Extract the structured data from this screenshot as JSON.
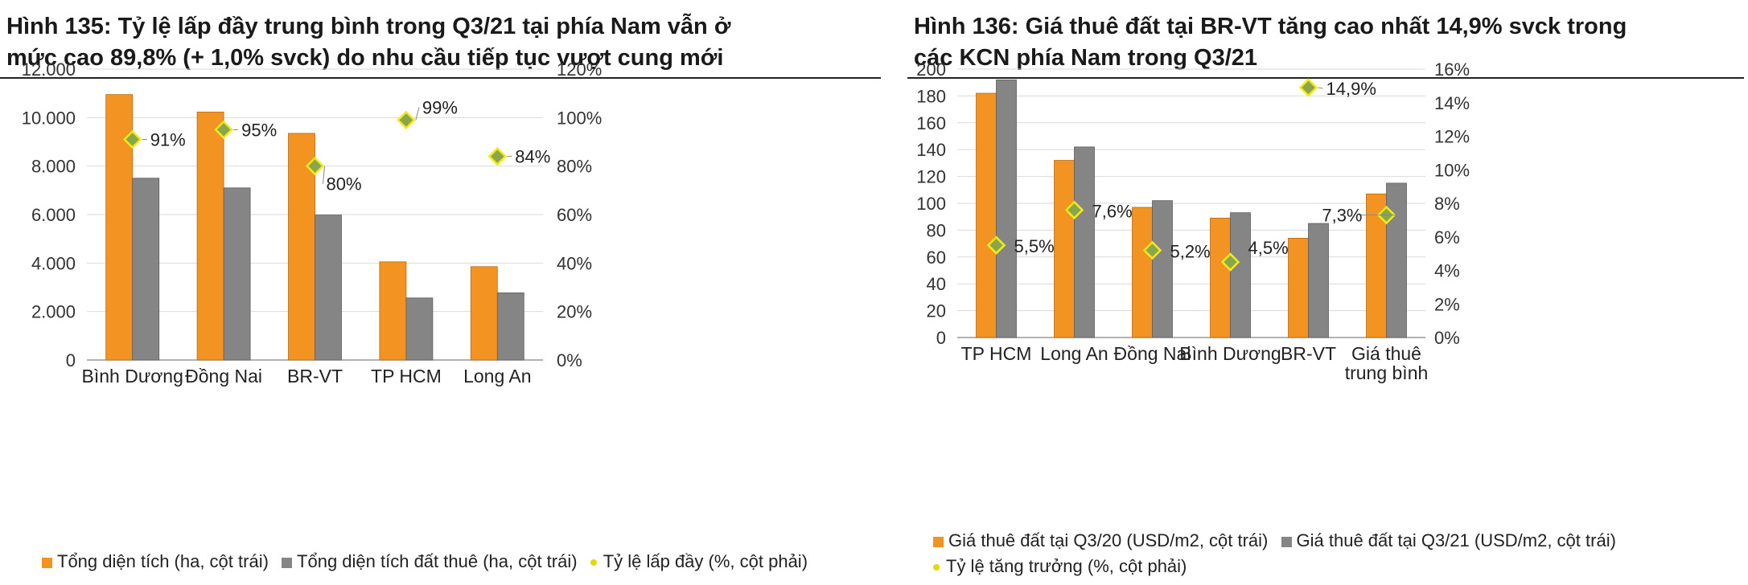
{
  "colors": {
    "orange": "#f39322",
    "gray": "#858585",
    "marker_fill": "#8aa64a",
    "marker_edge": "#f2ea1a"
  },
  "chart_data": [
    {
      "type": "bar",
      "title": "Hình 135: Tỷ lệ lấp đầy trung bình trong Q3/21 tại phía Nam vẫn ở\nmức cao 89,8% (+ 1,0% svck) do nhu cầu tiếp tục vượt cung mới",
      "categories": [
        "Bình Dương",
        "Đồng Nai",
        "BR-VT",
        "TP HCM",
        "Long An"
      ],
      "series": [
        {
          "name": "Tổng diện tích (ha, cột trái)",
          "values": [
            10950,
            10230,
            9350,
            4050,
            3850
          ],
          "color": "#f39322",
          "axis": "left"
        },
        {
          "name": "Tổng diện tích đất thuê (ha, cột trái)",
          "values": [
            7500,
            7100,
            5980,
            2560,
            2770
          ],
          "color": "#858585",
          "axis": "left"
        },
        {
          "name": "Tỷ lệ lấp đầy (%, cột phải)",
          "values": [
            91,
            95,
            80,
            99,
            84
          ],
          "labels": [
            "91%",
            "95%",
            "80%",
            "99%",
            "84%"
          ],
          "type": "marker",
          "axis": "right"
        }
      ],
      "ylim": [
        0,
        12000
      ],
      "yticks": [
        "0",
        "2.000",
        "4.000",
        "6.000",
        "8.000",
        "10.000",
        "12.000"
      ],
      "y2lim": [
        0,
        120
      ],
      "y2ticks": [
        "0%",
        "20%",
        "40%",
        "60%",
        "80%",
        "100%",
        "120%"
      ],
      "grid": true,
      "legend": "bottom"
    },
    {
      "type": "bar",
      "title": "Hình 136: Giá thuê đất tại BR-VT tăng cao nhất 14,9% svck trong\ncác KCN phía Nam trong Q3/21",
      "categories": [
        "TP HCM",
        "Long An",
        "Đồng Nai",
        "Bình Dương",
        "BR-VT",
        "Giá thuê\ntrung bình"
      ],
      "series": [
        {
          "name": "Giá thuê đất tại Q3/20 (USD/m2, cột trái)",
          "values": [
            182,
            132,
            97,
            89,
            74,
            107
          ],
          "color": "#f39322",
          "axis": "left"
        },
        {
          "name": "Giá thuê đất tại Q3/21 (USD/m2, cột trái)",
          "values": [
            192,
            142,
            102,
            93,
            85,
            115
          ],
          "color": "#858585",
          "axis": "left"
        },
        {
          "name": "Tỷ lệ tăng trưởng (%, cột phải)",
          "values": [
            5.5,
            7.6,
            5.2,
            4.5,
            14.9,
            7.3
          ],
          "labels": [
            "5,5%",
            "7,6%",
            "5,2%",
            "4,5%",
            "14,9%",
            "7,3%"
          ],
          "type": "marker",
          "axis": "right"
        }
      ],
      "ylim": [
        0,
        200
      ],
      "yticks": [
        "0",
        "20",
        "40",
        "60",
        "80",
        "100",
        "120",
        "140",
        "160",
        "180",
        "200"
      ],
      "y2lim": [
        0,
        16
      ],
      "y2ticks": [
        "0%",
        "2%",
        "4%",
        "6%",
        "8%",
        "10%",
        "12%",
        "14%",
        "16%"
      ],
      "grid": true,
      "legend": "bottom"
    }
  ]
}
